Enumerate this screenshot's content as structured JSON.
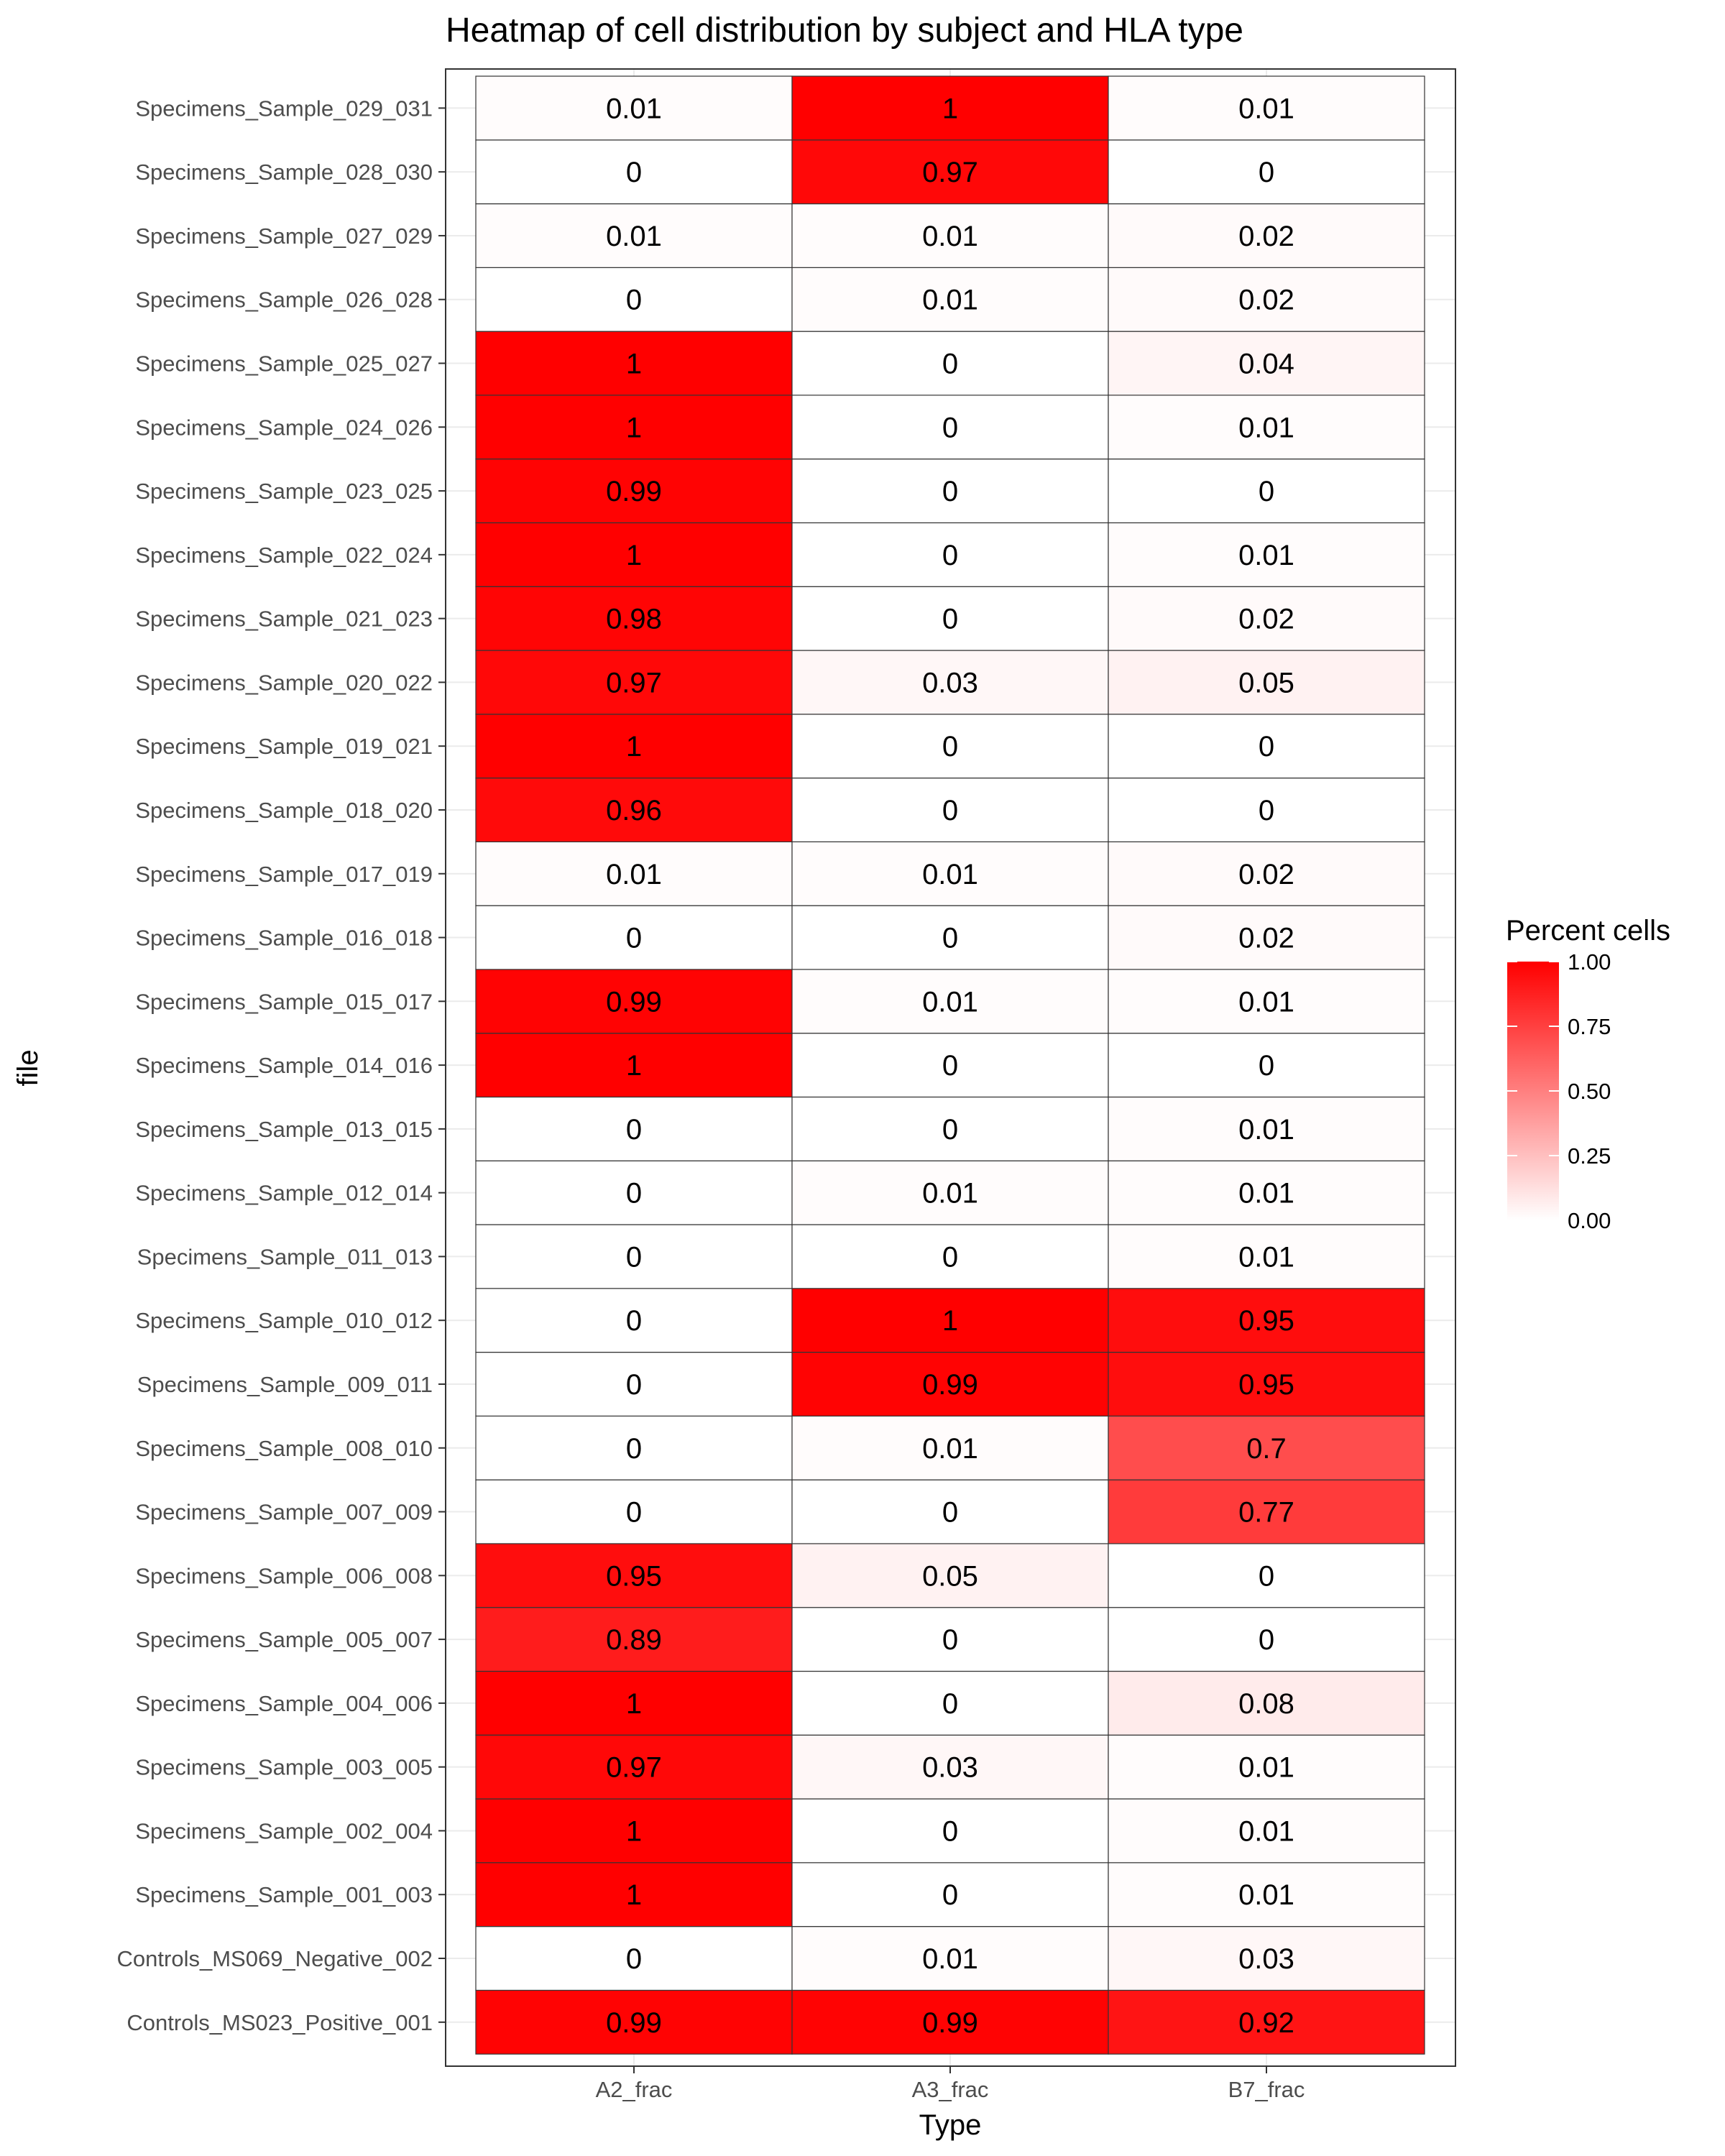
{
  "chart_data": {
    "type": "heatmap",
    "title": "Heatmap of cell distribution by subject and HLA type",
    "xlabel": "Type",
    "ylabel": "file",
    "x_categories": [
      "A2_frac",
      "A3_frac",
      "B7_frac"
    ],
    "y_categories": [
      "Controls_MS023_Positive_001",
      "Controls_MS069_Negative_002",
      "Specimens_Sample_001_003",
      "Specimens_Sample_002_004",
      "Specimens_Sample_003_005",
      "Specimens_Sample_004_006",
      "Specimens_Sample_005_007",
      "Specimens_Sample_006_008",
      "Specimens_Sample_007_009",
      "Specimens_Sample_008_010",
      "Specimens_Sample_009_011",
      "Specimens_Sample_010_012",
      "Specimens_Sample_011_013",
      "Specimens_Sample_012_014",
      "Specimens_Sample_013_015",
      "Specimens_Sample_014_016",
      "Specimens_Sample_015_017",
      "Specimens_Sample_016_018",
      "Specimens_Sample_017_019",
      "Specimens_Sample_018_020",
      "Specimens_Sample_019_021",
      "Specimens_Sample_020_022",
      "Specimens_Sample_021_023",
      "Specimens_Sample_022_024",
      "Specimens_Sample_023_025",
      "Specimens_Sample_024_026",
      "Specimens_Sample_025_027",
      "Specimens_Sample_026_028",
      "Specimens_Sample_027_029",
      "Specimens_Sample_028_030",
      "Specimens_Sample_029_031"
    ],
    "values": [
      [
        0.99,
        0.99,
        0.92
      ],
      [
        0,
        0.01,
        0.03
      ],
      [
        1,
        0,
        0.01
      ],
      [
        1,
        0,
        0.01
      ],
      [
        0.97,
        0.03,
        0.01
      ],
      [
        1,
        0,
        0.08
      ],
      [
        0.89,
        0,
        0
      ],
      [
        0.95,
        0.05,
        0
      ],
      [
        0,
        0,
        0.77
      ],
      [
        0,
        0.01,
        0.7
      ],
      [
        0,
        0.99,
        0.95
      ],
      [
        0,
        1,
        0.95
      ],
      [
        0,
        0,
        0.01
      ],
      [
        0,
        0.01,
        0.01
      ],
      [
        0,
        0,
        0.01
      ],
      [
        1,
        0,
        0
      ],
      [
        0.99,
        0.01,
        0.01
      ],
      [
        0,
        0,
        0.02
      ],
      [
        0.01,
        0.01,
        0.02
      ],
      [
        0.96,
        0,
        0
      ],
      [
        1,
        0,
        0
      ],
      [
        0.97,
        0.03,
        0.05
      ],
      [
        0.98,
        0,
        0.02
      ],
      [
        1,
        0,
        0.01
      ],
      [
        0.99,
        0,
        0
      ],
      [
        1,
        0,
        0.01
      ],
      [
        1,
        0,
        0.04
      ],
      [
        0,
        0.01,
        0.02
      ],
      [
        0.01,
        0.01,
        0.02
      ],
      [
        0,
        0.97,
        0
      ],
      [
        0.01,
        1,
        0.01
      ]
    ],
    "color_scale": {
      "low": "#ffffff",
      "high": "#ff0000",
      "range": [
        0,
        1
      ]
    },
    "legend": {
      "title": "Percent cells",
      "ticks": [
        1.0,
        0.75,
        0.5,
        0.25,
        0.0
      ],
      "tick_labels": [
        "1.00",
        "0.75",
        "0.50",
        "0.25",
        "0.00"
      ],
      "position": "right"
    },
    "grid": true
  }
}
